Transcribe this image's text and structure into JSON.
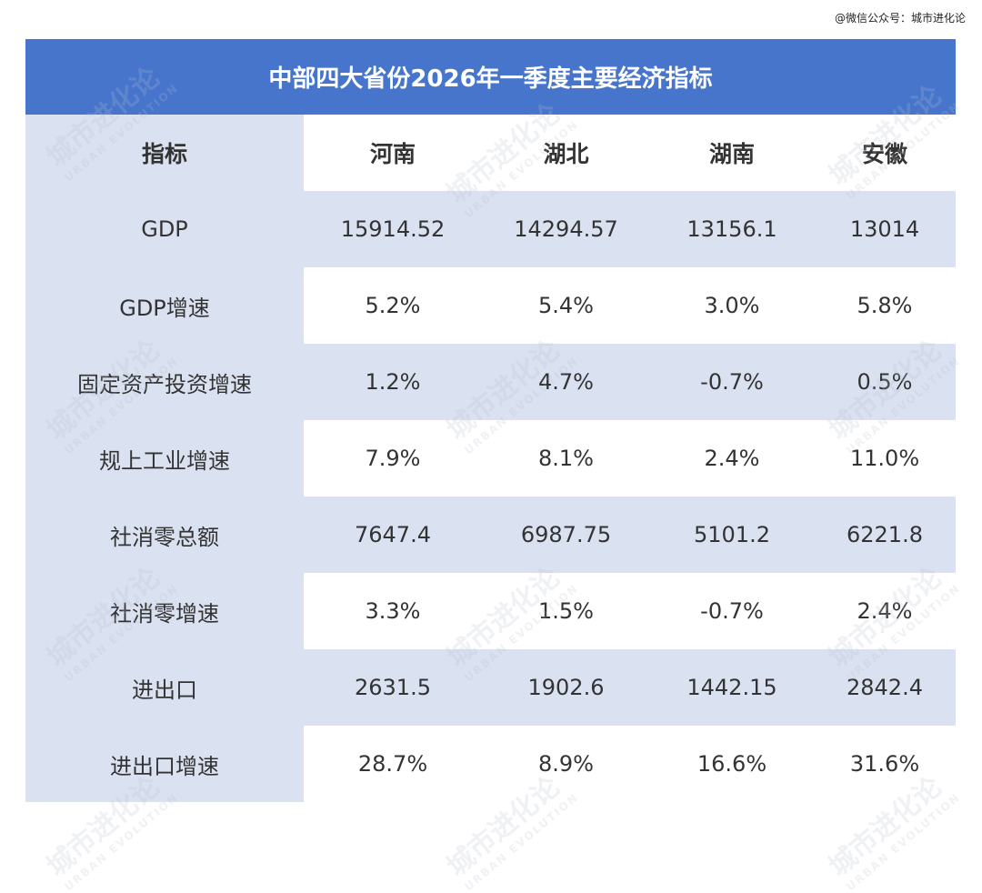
{
  "credit": "@微信公众号：城市进化论",
  "watermark": {
    "cn": "城市进化论",
    "en": "URBAN EVOLUTION"
  },
  "colors": {
    "title_bg": "#4775cc",
    "shade": "#dae1f0"
  },
  "chart_data": {
    "type": "table",
    "title": "中部四大省份2026年一季度主要经济指标",
    "columns": [
      "指标",
      "河南",
      "湖北",
      "湖南",
      "安徽"
    ],
    "rows": [
      [
        "GDP",
        "15914.52",
        "14294.57",
        "13156.1",
        "13014"
      ],
      [
        "GDP增速",
        "5.2%",
        "5.4%",
        "3.0%",
        "5.8%"
      ],
      [
        "固定资产投资增速",
        "1.2%",
        "4.7%",
        "-0.7%",
        "0.5%"
      ],
      [
        "规上工业增速",
        "7.9%",
        "8.1%",
        "2.4%",
        "11.0%"
      ],
      [
        "社消零总额",
        "7647.4",
        "6987.75",
        "5101.2",
        "6221.8"
      ],
      [
        "社消零增速",
        "3.3%",
        "1.5%",
        "-0.7%",
        "2.4%"
      ],
      [
        "进出口",
        "2631.5",
        "1902.6",
        "1442.15",
        "2842.4"
      ],
      [
        "进出口增速",
        "28.7%",
        "8.9%",
        "16.6%",
        "31.6%"
      ]
    ]
  }
}
